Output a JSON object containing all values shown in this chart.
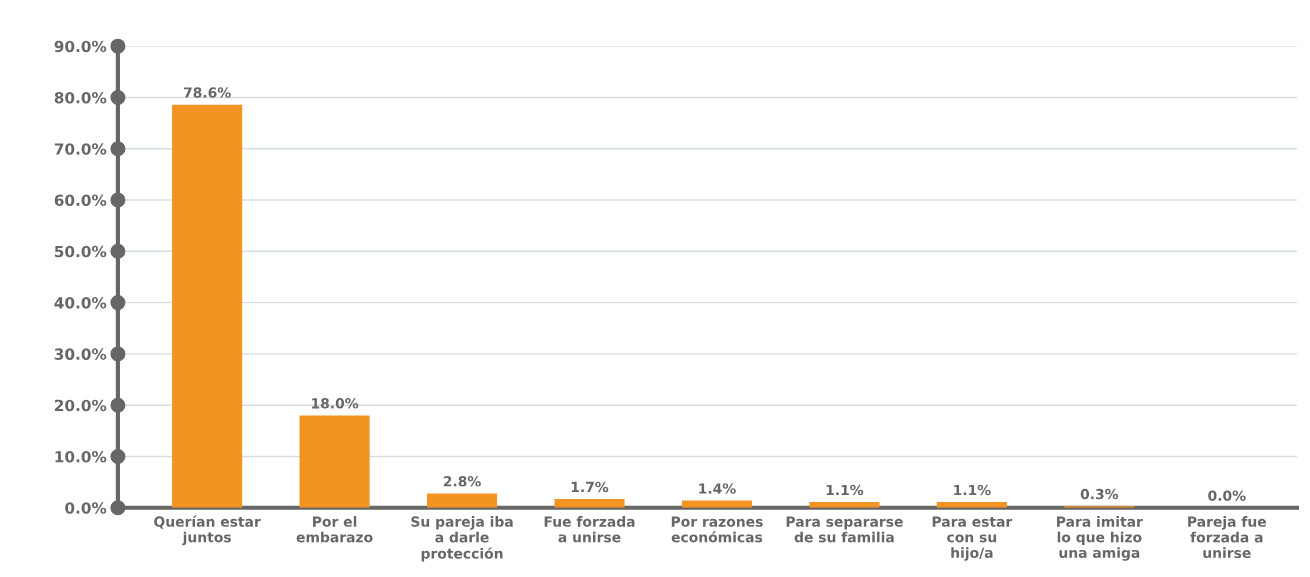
{
  "chart_data": {
    "type": "bar",
    "categories": [
      "Querían estar\njuntos",
      "Por el\nembarazo",
      "Su pareja iba\na darle\nprotección",
      "Fue forzada\na unirse",
      "Por razones\neconómicas",
      "Para separarse\nde su familia",
      "Para estar\ncon su\nhijo/a",
      "Para imitar\nlo que hizo\nuna amiga",
      "Pareja fue\nforzada a\nunirse"
    ],
    "values": [
      78.6,
      18.0,
      2.8,
      1.7,
      1.4,
      1.1,
      1.1,
      0.3,
      0.0
    ],
    "value_labels": [
      "78.6%",
      "18.0%",
      "2.8%",
      "1.7%",
      "1.4%",
      "1.1%",
      "1.1%",
      "0.3%",
      "0.0%"
    ],
    "color": "#f39422",
    "ylim": [
      0,
      90
    ],
    "yticks": [
      {
        "value": 0,
        "label": "0.0%"
      },
      {
        "value": 10,
        "label": "10.0%"
      },
      {
        "value": 20,
        "label": "20.0%"
      },
      {
        "value": 30,
        "label": "30.0%"
      },
      {
        "value": 40,
        "label": "40.0%"
      },
      {
        "value": 50,
        "label": "50.0%"
      },
      {
        "value": 60,
        "label": "60.0%"
      },
      {
        "value": 70,
        "label": "70.0%"
      },
      {
        "value": 80,
        "label": "80.0%"
      },
      {
        "value": 90,
        "label": "90.0%"
      }
    ],
    "grid": "y"
  }
}
